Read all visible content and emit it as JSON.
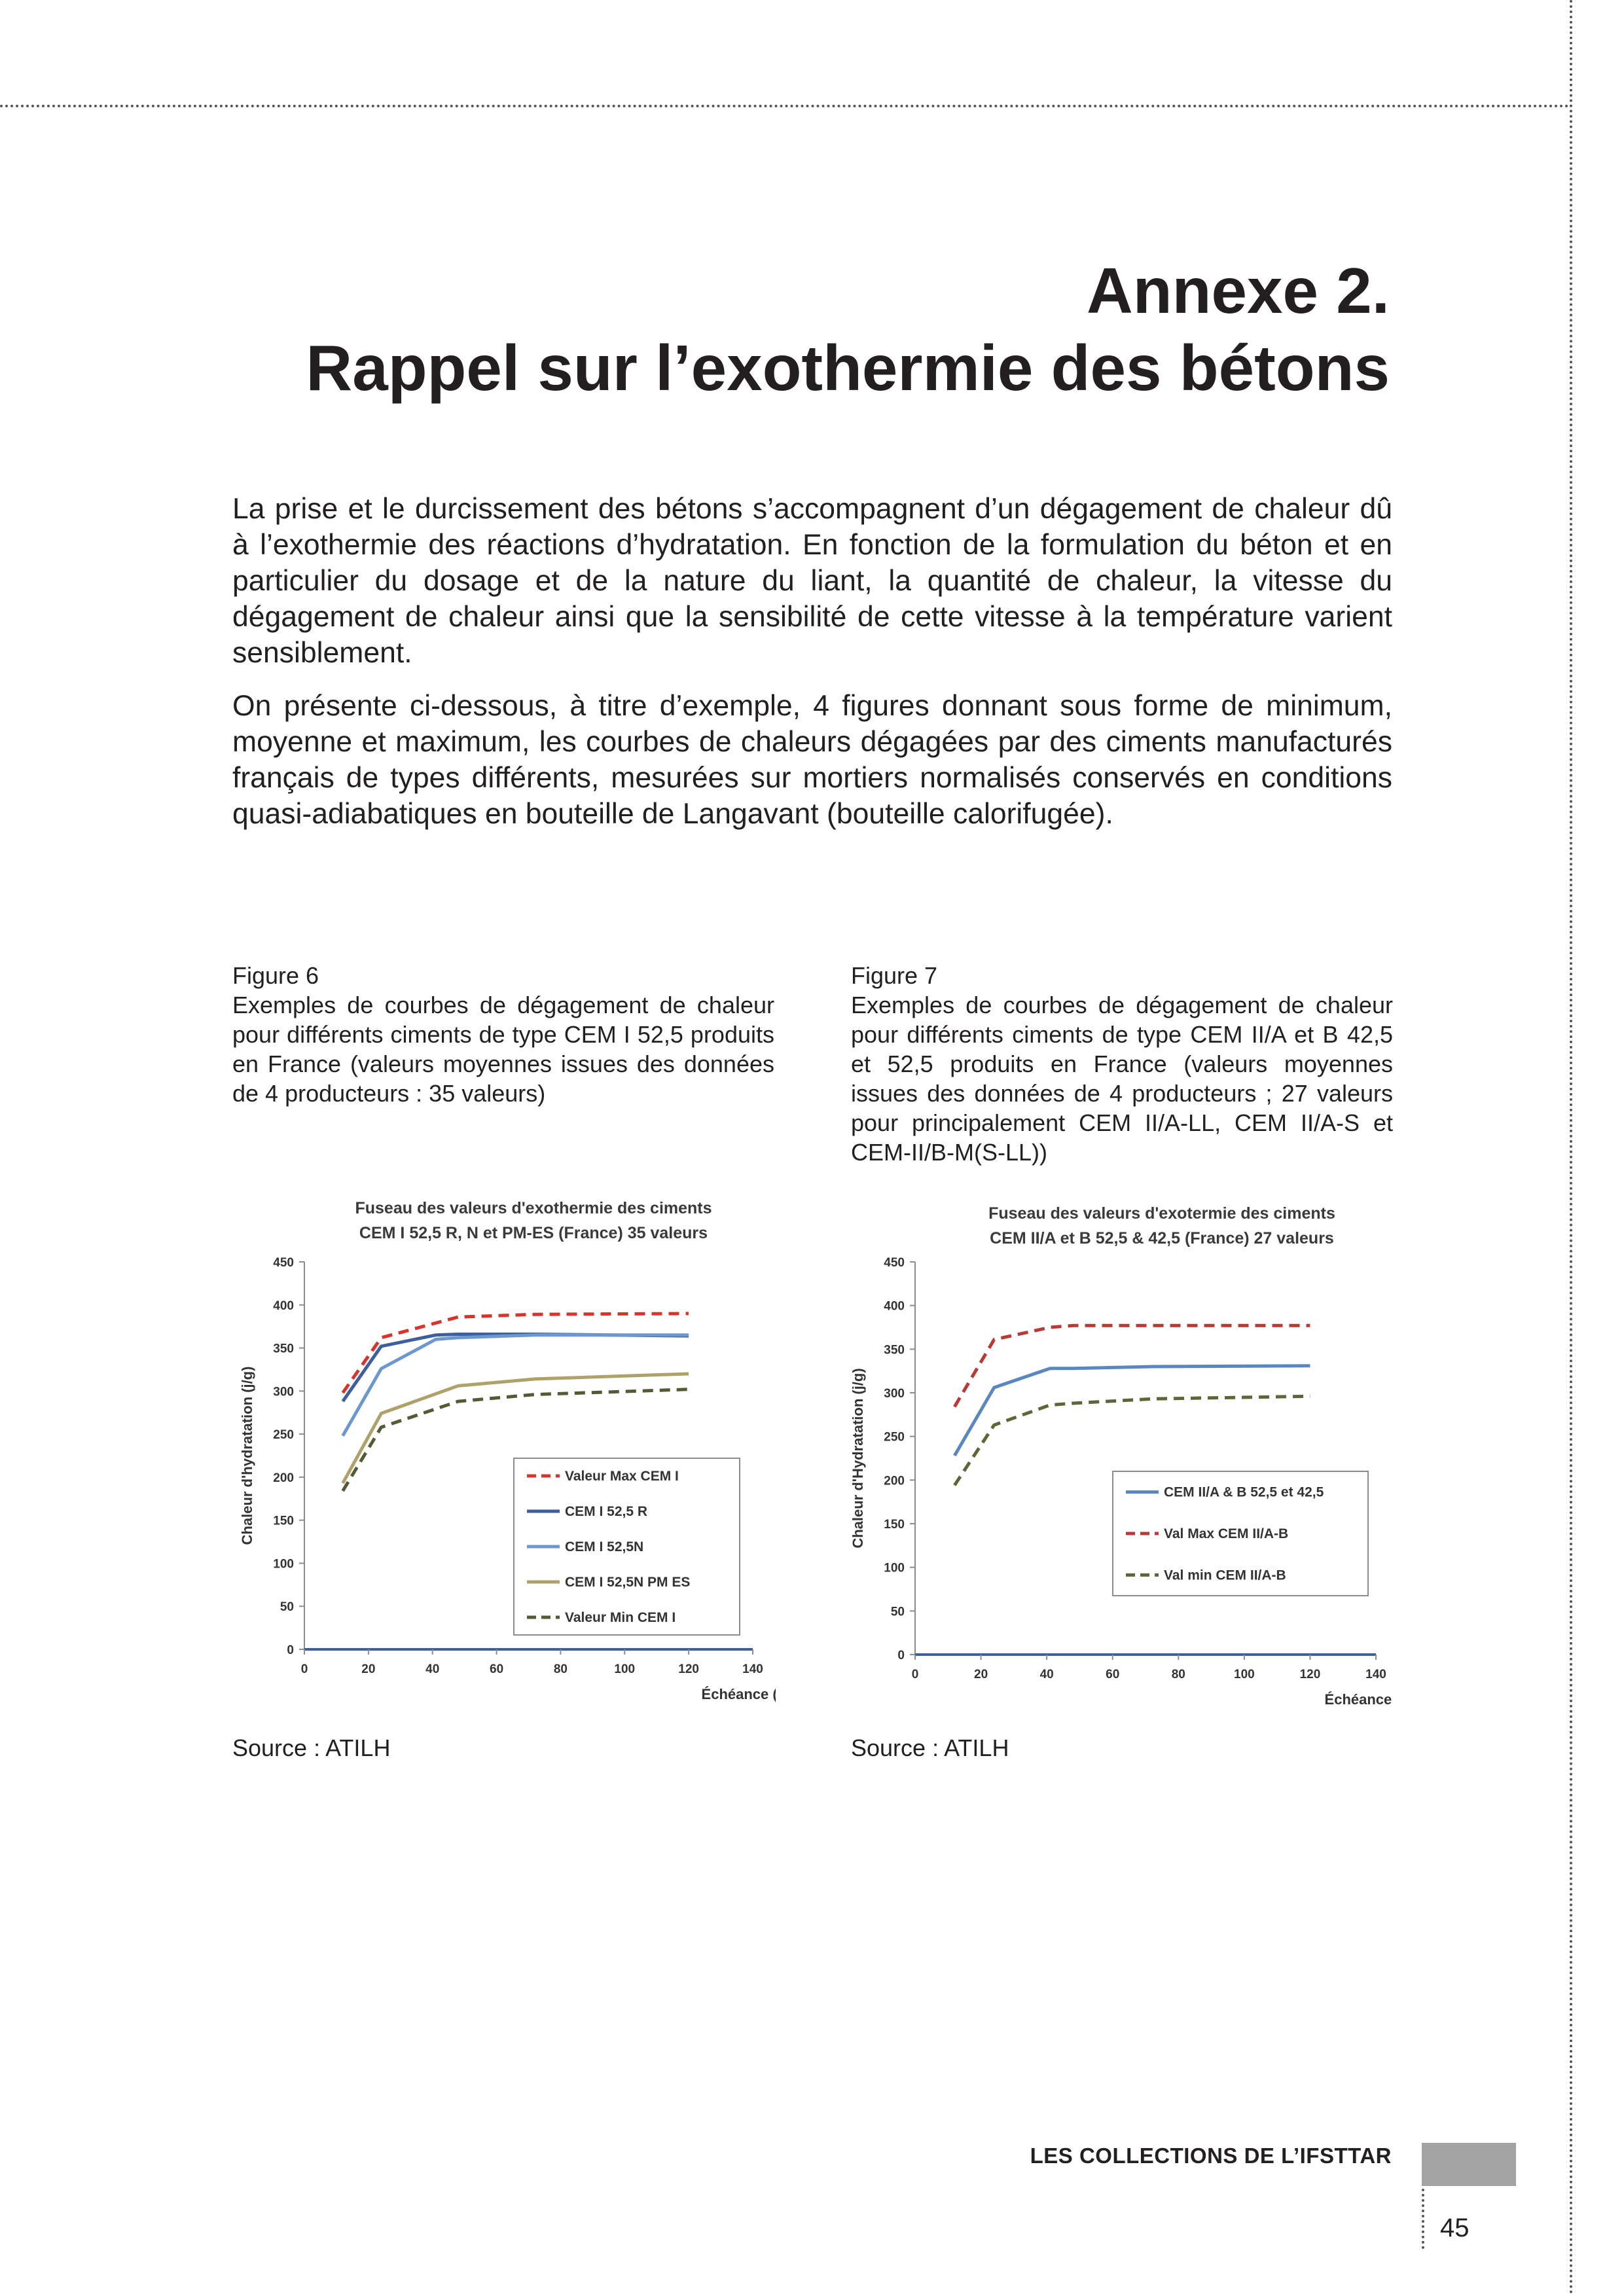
{
  "header": {
    "title_line1": "Annexe 2.",
    "title_line2": "Rappel sur l’exothermie des bétons"
  },
  "intro": {
    "paragraph1": "La prise et le durcissement des bétons s’accompagnent d’un dégagement de chaleur dû à l’exothermie des réactions d’hydratation. En fonction de la formulation du béton et en particulier du dosage et de la nature du liant, la quantité de chaleur, la vitesse du dégagement de chaleur ainsi que la sensibilité de cette vitesse à la température varient sensiblement.",
    "paragraph2": "On présente ci-dessous, à titre d’exemple, 4 figures donnant sous forme de minimum, moyenne et maximum, les courbes de chaleurs dégagées par des ciments manufacturés français de types différents, mesurées sur mortiers normalisés conservés en conditions quasi-adiabatiques en bouteille de Langavant (bouteille calorifugée)."
  },
  "figures": [
    {
      "number": "Figure 6",
      "caption": "Exemples de courbes de dégagement de chaleur pour différents ciments de type CEM I 52,5 produits en France (valeurs moyennes issues des données de 4 producteurs : 35 valeurs)",
      "source": "Source : ATILH"
    },
    {
      "number": "Figure 7",
      "caption": "Exemples de courbes de dégagement de chaleur pour différents ciments de type CEM II/A et B 42,5 et 52,5 produits en France (valeurs moyennes issues des données de 4 producteurs ; 27 valeurs pour principalement CEM II/A-LL, CEM II/A-S et CEM-II/B-M(S-LL))",
      "source": "Source : ATILH"
    }
  ],
  "chart_data": [
    {
      "type": "line",
      "title": "Fuseau des valeurs d'exothermie des ciments CEM I 52,5 R, N et PM-ES (France)  35 valeurs",
      "title_line1": "Fuseau des valeurs d'exothermie des ciments",
      "title_line2": "CEM I 52,5 R, N et PM-ES (France)  35 valeurs",
      "xlabel": "Échéance (h)",
      "ylabel": "Chaleur d'hydratation (j/g)",
      "xlim": [
        0,
        140
      ],
      "ylim": [
        0,
        450
      ],
      "xticks": [
        "0",
        "20",
        "40",
        "60",
        "80",
        "100",
        "120",
        "140"
      ],
      "yticks": [
        "0",
        "50",
        "100",
        "150",
        "200",
        "250",
        "300",
        "350",
        "400",
        "450"
      ],
      "grid": false,
      "legend_position": "bottom-right",
      "series": [
        {
          "name": "Valeur Max CEM I",
          "color": "#d9342b",
          "dash": true,
          "x": [
            12,
            24,
            48,
            72,
            120
          ],
          "y": [
            298,
            362,
            386,
            389,
            390
          ]
        },
        {
          "name": "CEM I 52,5 R",
          "color": "#3d5f9e",
          "dash": false,
          "x": [
            12,
            24,
            41,
            48,
            72,
            120
          ],
          "y": [
            288,
            352,
            365,
            366,
            366,
            364
          ]
        },
        {
          "name": "CEM I 52,5N",
          "color": "#6d98cf",
          "dash": false,
          "x": [
            12,
            24,
            41,
            48,
            72,
            120
          ],
          "y": [
            248,
            326,
            360,
            362,
            365,
            365
          ]
        },
        {
          "name": "CEM I 52,5N PM ES",
          "color": "#aea26a",
          "dash": false,
          "x": [
            12,
            24,
            48,
            72,
            120
          ],
          "y": [
            193,
            274,
            306,
            314,
            320
          ]
        },
        {
          "name": "Valeur Min CEM I",
          "color": "#545b34",
          "dash": true,
          "x": [
            12,
            24,
            48,
            72,
            120
          ],
          "y": [
            184,
            258,
            288,
            296,
            302
          ]
        }
      ]
    },
    {
      "type": "line",
      "title": "Fuseau des valeurs d'exotermie des ciments CEM II/A et B 52,5 & 42,5 (France)  27 valeurs",
      "title_line1": "Fuseau des valeurs d'exotermie des ciments",
      "title_line2": "CEM II/A et B 52,5 & 42,5 (France)  27 valeurs",
      "xlabel": "Échéance (h)",
      "ylabel": "Chaleur d'Hydratation (j/g)",
      "xlim": [
        0,
        140
      ],
      "ylim": [
        0,
        450
      ],
      "xticks": [
        "0",
        "20",
        "40",
        "60",
        "80",
        "100",
        "120",
        "140"
      ],
      "yticks": [
        "0",
        "50",
        "100",
        "150",
        "200",
        "250",
        "300",
        "350",
        "400",
        "450"
      ],
      "grid": false,
      "legend_position": "bottom-right",
      "series": [
        {
          "name": "CEM II/A & B 52,5 et 42,5",
          "color": "#5b87c0",
          "dash": false,
          "x": [
            12,
            24,
            41,
            48,
            72,
            120
          ],
          "y": [
            228,
            306,
            328,
            328,
            330,
            331
          ]
        },
        {
          "name": "Val Max CEM II/A-B",
          "color": "#b83a35",
          "dash": true,
          "x": [
            12,
            24,
            41,
            48,
            72,
            120
          ],
          "y": [
            284,
            361,
            375,
            377,
            377,
            377
          ]
        },
        {
          "name": "Val min CEM II/A-B",
          "color": "#5c6637",
          "dash": true,
          "x": [
            12,
            24,
            41,
            48,
            72,
            120
          ],
          "y": [
            194,
            263,
            286,
            288,
            293,
            296
          ]
        }
      ]
    }
  ],
  "footer": {
    "brand": "LES COLLECTIONS DE L’IFSTTAR",
    "page_number": "45",
    "bar_color": "#a3a3a3"
  }
}
